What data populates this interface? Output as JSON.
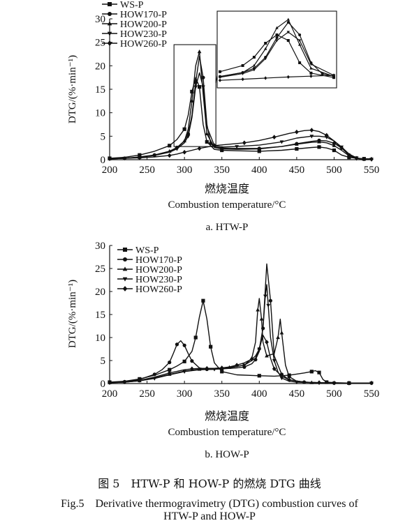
{
  "figure": {
    "caption_cn": "图 5　HTW-P 和 HOW-P 的燃烧 DTG 曲线",
    "caption_en_line1": "Fig.5　Derivative thermogravimetry (DTG) combustion curves of",
    "caption_en_line2": "HTW-P and HOW-P"
  },
  "chart_data": [
    {
      "type": "line",
      "sublabel": "a. HTW-P",
      "xlabel_cn": "燃烧温度",
      "xlabel_en": "Combustion temperature/°C",
      "ylabel": "DTG/(%·min⁻¹)",
      "xlim": [
        200,
        550
      ],
      "ylim": [
        0,
        30
      ],
      "xticks": [
        200,
        250,
        300,
        350,
        400,
        450,
        500,
        550
      ],
      "yticks": [
        0,
        5,
        10,
        15,
        20,
        25,
        30
      ],
      "legend_position": "top-left",
      "inset_range": [
        290,
        340
      ],
      "series": [
        {
          "name": "WS-P",
          "marker": "square",
          "x": [
            200,
            220,
            240,
            260,
            280,
            290,
            300,
            305,
            310,
            315,
            320,
            325,
            330,
            340,
            350,
            370,
            400,
            430,
            450,
            470,
            480,
            490,
            500,
            510,
            520,
            530,
            540,
            550
          ],
          "y": [
            0.3,
            0.5,
            1.0,
            1.8,
            3.0,
            4.3,
            6.5,
            9.5,
            14.5,
            17.5,
            15.5,
            7.5,
            3.8,
            2.2,
            2.0,
            1.9,
            1.8,
            2.0,
            2.3,
            2.6,
            2.7,
            2.5,
            2.0,
            1.0,
            0.5,
            0.3,
            0.2,
            0.2
          ]
        },
        {
          "name": "HOW170-P",
          "marker": "circle",
          "x": [
            200,
            220,
            240,
            260,
            280,
            290,
            300,
            305,
            310,
            315,
            320,
            325,
            330,
            335,
            340,
            350,
            370,
            400,
            430,
            450,
            470,
            480,
            490,
            500,
            510,
            520,
            530,
            540,
            550
          ],
          "y": [
            0.2,
            0.3,
            0.6,
            1.0,
            1.8,
            2.6,
            4.0,
            5.5,
            9.5,
            16.5,
            22.0,
            17.5,
            7.5,
            3.5,
            2.7,
            2.5,
            2.4,
            2.4,
            2.8,
            3.4,
            3.9,
            4.1,
            4.0,
            3.5,
            2.5,
            1.0,
            0.3,
            0.1,
            0.1
          ]
        },
        {
          "name": "HOW200-P",
          "marker": "triangle",
          "x": [
            200,
            220,
            240,
            260,
            280,
            290,
            300,
            305,
            310,
            315,
            320,
            325,
            330,
            340,
            350,
            370,
            400,
            430,
            450,
            470,
            480,
            490,
            500,
            510,
            520,
            530,
            540,
            550
          ],
          "y": [
            0.2,
            0.3,
            0.5,
            1.0,
            1.8,
            2.5,
            4.0,
            6.5,
            12.5,
            20.0,
            23.0,
            14.0,
            5.5,
            2.6,
            2.3,
            2.2,
            2.3,
            2.8,
            3.3,
            3.7,
            3.8,
            3.6,
            3.0,
            2.0,
            0.8,
            0.3,
            0.1,
            0.1
          ]
        },
        {
          "name": "HOW230-P",
          "marker": "triangle-down",
          "x": [
            200,
            220,
            240,
            260,
            280,
            290,
            300,
            305,
            310,
            315,
            320,
            325,
            330,
            340,
            350,
            370,
            400,
            430,
            450,
            470,
            480,
            490,
            500,
            510,
            520,
            530,
            540,
            550
          ],
          "y": [
            0.2,
            0.3,
            0.5,
            0.9,
            1.6,
            2.3,
            3.6,
            5.0,
            9.0,
            15.5,
            18.5,
            15.5,
            7.0,
            3.0,
            2.7,
            2.8,
            3.1,
            3.8,
            4.6,
            5.0,
            5.0,
            4.8,
            4.0,
            2.7,
            1.2,
            0.4,
            0.1,
            0.1
          ]
        },
        {
          "name": "HOW260-P",
          "marker": "diamond",
          "x": [
            200,
            220,
            240,
            260,
            280,
            290,
            300,
            310,
            320,
            330,
            340,
            360,
            380,
            400,
            420,
            440,
            450,
            460,
            470,
            480,
            490,
            500,
            510,
            520,
            530,
            540,
            550
          ],
          "y": [
            0.2,
            0.3,
            0.4,
            0.6,
            0.9,
            1.2,
            1.6,
            2.0,
            2.4,
            2.7,
            3.0,
            3.3,
            3.6,
            4.1,
            4.8,
            5.6,
            5.9,
            6.2,
            6.3,
            6.0,
            5.2,
            4.0,
            2.5,
            1.0,
            0.3,
            0.1,
            0.1
          ]
        }
      ]
    },
    {
      "type": "line",
      "sublabel": "b. HOW-P",
      "xlabel_cn": "燃烧温度",
      "xlabel_en": "Combustion temperature/°C",
      "ylabel": "DTG/(%·min⁻¹)",
      "xlim": [
        200,
        550
      ],
      "ylim": [
        0,
        30
      ],
      "xticks": [
        200,
        250,
        300,
        350,
        400,
        450,
        500,
        550
      ],
      "yticks": [
        0,
        5,
        10,
        15,
        20,
        25,
        30
      ],
      "legend_position": "top-left",
      "series": [
        {
          "name": "WS-P",
          "marker": "square",
          "x": [
            200,
            220,
            240,
            260,
            280,
            290,
            300,
            310,
            315,
            320,
            325,
            330,
            335,
            340,
            350,
            370,
            400,
            420,
            440,
            460,
            470,
            475,
            480,
            485,
            490,
            500,
            520,
            550
          ],
          "y": [
            0.3,
            0.5,
            1.0,
            1.8,
            3.0,
            3.8,
            4.8,
            7.0,
            10.0,
            14.5,
            18.0,
            14.0,
            8.0,
            4.5,
            2.6,
            1.9,
            1.7,
            1.6,
            1.8,
            2.3,
            2.6,
            2.8,
            2.4,
            0.9,
            0.3,
            0.2,
            0.1,
            0.1
          ]
        },
        {
          "name": "HOW170-P",
          "marker": "circle",
          "x": [
            200,
            220,
            240,
            260,
            270,
            280,
            285,
            290,
            295,
            300,
            305,
            310,
            320,
            330,
            340,
            350,
            370,
            380,
            390,
            395,
            400,
            405,
            410,
            415,
            420,
            430,
            440,
            460,
            480,
            500,
            520,
            550
          ],
          "y": [
            0.2,
            0.4,
            0.9,
            2.0,
            3.0,
            4.6,
            6.5,
            8.5,
            9.3,
            8.3,
            6.5,
            4.9,
            3.4,
            3.1,
            3.1,
            3.2,
            3.4,
            3.6,
            4.3,
            5.2,
            7.0,
            12.0,
            26.0,
            18.0,
            6.0,
            2.0,
            0.8,
            0.3,
            0.2,
            0.1,
            0.1,
            0.1
          ]
        },
        {
          "name": "HOW200-P",
          "marker": "triangle",
          "x": [
            200,
            220,
            240,
            260,
            280,
            300,
            320,
            340,
            360,
            380,
            390,
            395,
            398,
            400,
            403,
            405,
            410,
            420,
            425,
            428,
            430,
            435,
            440,
            450,
            470,
            500,
            520,
            550
          ],
          "y": [
            0.2,
            0.3,
            0.6,
            1.2,
            2.0,
            2.7,
            3.1,
            3.3,
            3.5,
            4.0,
            5.5,
            9.0,
            16.0,
            18.5,
            14.0,
            9.0,
            6.0,
            6.5,
            10.0,
            14.0,
            11.0,
            4.0,
            1.5,
            0.5,
            0.2,
            0.1,
            0.1,
            0.1
          ]
        },
        {
          "name": "HOW230-P",
          "marker": "triangle-down",
          "x": [
            200,
            220,
            240,
            260,
            280,
            300,
            320,
            340,
            360,
            380,
            395,
            400,
            405,
            408,
            410,
            412,
            415,
            420,
            425,
            430,
            440,
            450,
            470,
            500,
            520,
            550
          ],
          "y": [
            0.2,
            0.3,
            0.6,
            1.1,
            1.9,
            2.6,
            3.0,
            3.1,
            3.4,
            4.0,
            5.5,
            7.5,
            12.0,
            19.0,
            21.5,
            17.0,
            10.0,
            5.0,
            2.5,
            1.2,
            0.5,
            0.3,
            0.2,
            0.1,
            0.1,
            0.1
          ]
        },
        {
          "name": "HOW260-P",
          "marker": "diamond",
          "x": [
            200,
            220,
            240,
            260,
            280,
            300,
            310,
            320,
            330,
            340,
            350,
            360,
            370,
            380,
            390,
            395,
            400,
            405,
            410,
            415,
            420,
            430,
            440,
            460,
            480,
            500,
            520,
            550
          ],
          "y": [
            0.2,
            0.3,
            0.7,
            1.4,
            2.3,
            3.0,
            3.2,
            3.3,
            3.3,
            3.3,
            3.4,
            3.6,
            4.0,
            4.5,
            5.3,
            6.0,
            7.5,
            10.5,
            9.0,
            5.5,
            3.2,
            1.6,
            0.8,
            0.3,
            0.2,
            0.1,
            0.1,
            0.1
          ]
        }
      ]
    }
  ]
}
